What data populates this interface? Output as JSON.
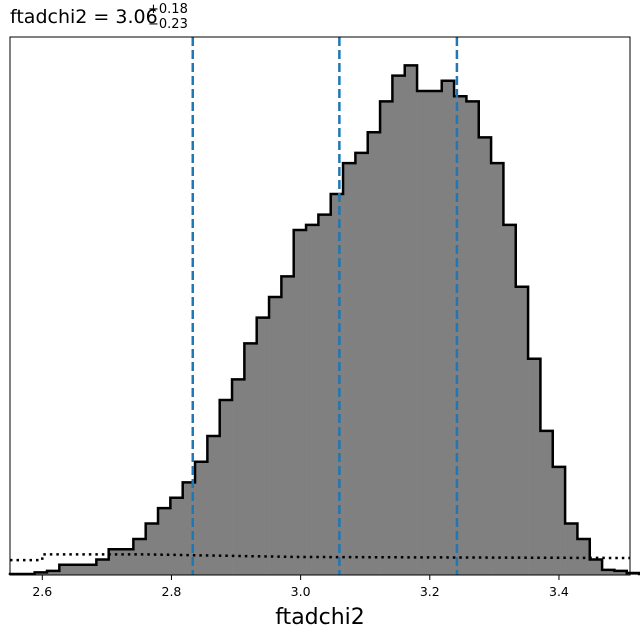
{
  "chart_data": {
    "type": "histogram",
    "title": {
      "base": "ftadchi2 = 3.06",
      "upper": "+0.18",
      "lower": "−0.23"
    },
    "xlabel": "ftadchi2",
    "xlim": [
      2.55,
      3.51
    ],
    "ylim": [
      0,
      1.045
    ],
    "xticks": [
      2.6,
      2.8,
      3.0,
      3.2,
      3.4
    ],
    "xtick_labels": [
      "2.6",
      "2.8",
      "3.0",
      "3.2",
      "3.4"
    ],
    "yaxis_visible": false,
    "bin_width": 0.0191,
    "bins_start": 2.55,
    "values": [
      0.002,
      0.002,
      0.005,
      0.008,
      0.02,
      0.02,
      0.02,
      0.03,
      0.05,
      0.05,
      0.07,
      0.1,
      0.13,
      0.15,
      0.18,
      0.22,
      0.27,
      0.34,
      0.38,
      0.45,
      0.5,
      0.54,
      0.58,
      0.67,
      0.68,
      0.7,
      0.74,
      0.8,
      0.82,
      0.86,
      0.92,
      0.97,
      0.99,
      0.94,
      0.94,
      0.96,
      0.93,
      0.92,
      0.85,
      0.8,
      0.68,
      0.56,
      0.42,
      0.28,
      0.21,
      0.1,
      0.07,
      0.03,
      0.01,
      0.008,
      0.004,
      0.002
    ],
    "quantile_lines": [
      2.833,
      3.06,
      3.242
    ],
    "prior_line": {
      "style": "dotted",
      "points": [
        [
          2.55,
          0.029
        ],
        [
          2.6,
          0.029
        ],
        [
          2.6,
          0.04
        ],
        [
          2.76,
          0.04
        ],
        [
          2.9,
          0.037
        ],
        [
          3.0,
          0.035
        ],
        [
          3.51,
          0.033
        ]
      ]
    },
    "colors": {
      "hist_fill": "#808080",
      "hist_edge": "#000000",
      "quantile": "#1f77b4",
      "prior": "#000000"
    }
  }
}
